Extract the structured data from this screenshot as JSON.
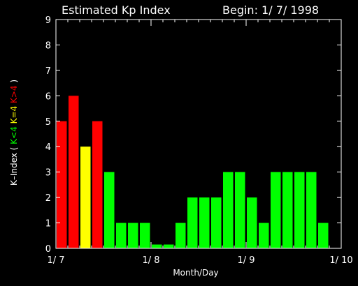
{
  "header": {
    "title": "Estimated Kp Index",
    "begin": "Begin: 1/ 7/ 1998"
  },
  "chart_data": {
    "type": "bar",
    "title": "Estimated Kp Index",
    "subtitle": "Begin: 1/ 7/ 1998",
    "xlabel": "Month/Day",
    "ylabel_parts": [
      {
        "text": "K–Index ( ",
        "color": "#ffffff"
      },
      {
        "text": "K<4",
        "color": "#00ff00"
      },
      {
        "text": " ",
        "color": "#ffffff"
      },
      {
        "text": "K=4",
        "color": "#ffff00"
      },
      {
        "text": " ",
        "color": "#ffffff"
      },
      {
        "text": "K>4",
        "color": "#ff0000"
      },
      {
        "text": " )",
        "color": "#ffffff"
      }
    ],
    "ylim": [
      0,
      9
    ],
    "yticks": [
      0,
      1,
      2,
      3,
      4,
      5,
      6,
      7,
      8,
      9
    ],
    "xlim_bins": 24,
    "xtick_labels": [
      {
        "label": "1/ 7",
        "bin": 0
      },
      {
        "label": "1/ 8",
        "bin": 8
      },
      {
        "label": "1/ 9",
        "bin": 16
      },
      {
        "label": "1/ 10",
        "bin": 24
      }
    ],
    "values": [
      5,
      6,
      4,
      5,
      3,
      1,
      1,
      1,
      0.15,
      0.15,
      1,
      2,
      2,
      2,
      3,
      3,
      2,
      1,
      3,
      3,
      3,
      3,
      1
    ],
    "colors": {
      "low": "#00ff00",
      "equal": "#ffff00",
      "high": "#ff0000",
      "axis": "#ffffff",
      "background": "#000000"
    }
  }
}
